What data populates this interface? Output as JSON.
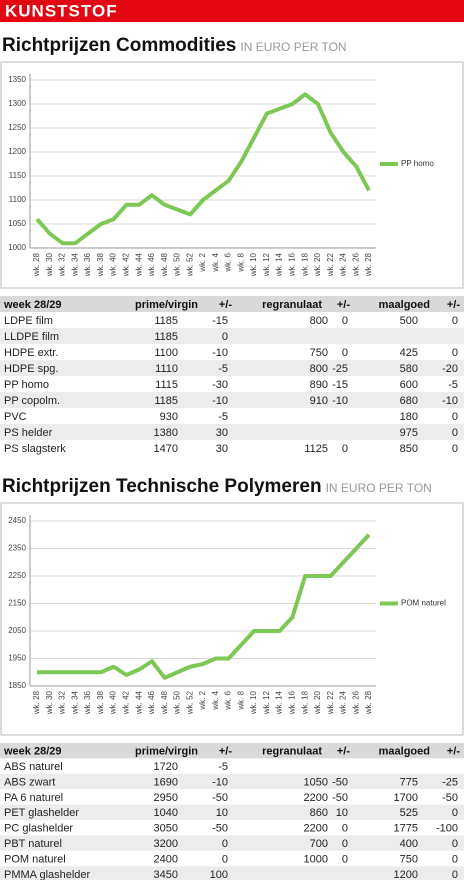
{
  "header": "KUNSTSTOF",
  "chart_data": [
    {
      "type": "line",
      "title": "Richtprijzen Commodities",
      "subtitle": "IN EURO PER TON",
      "categories": [
        "wk. 28",
        "wk. 30",
        "wk. 32",
        "wk. 34",
        "wk. 36",
        "wk. 38",
        "wk. 40",
        "wk. 42",
        "wk. 44",
        "wk. 46",
        "wk. 48",
        "wk. 50",
        "wk. 52",
        "wk. 2",
        "wk. 4",
        "wk. 6",
        "wk. 8",
        "wk. 10",
        "wk. 12",
        "wk. 14",
        "wk. 16",
        "wk. 18",
        "wk. 20",
        "wk. 22",
        "wk. 24",
        "wk. 26",
        "wk. 28"
      ],
      "series": [
        {
          "name": "PP homo",
          "color": "#7dc855",
          "values": [
            1060,
            1030,
            1010,
            1010,
            1030,
            1050,
            1060,
            1090,
            1090,
            1110,
            1090,
            1080,
            1070,
            1100,
            1120,
            1140,
            1180,
            1230,
            1280,
            1290,
            1300,
            1320,
            1300,
            1240,
            1200,
            1170,
            1120
          ]
        }
      ],
      "ylim": [
        1000,
        1350
      ],
      "yticks": [
        1000,
        1050,
        1100,
        1150,
        1200,
        1250,
        1300,
        1350
      ],
      "grid": true,
      "legend": "right"
    },
    {
      "type": "line",
      "title": "Richtprijzen Technische Polymeren",
      "subtitle": "IN EURO PER TON",
      "categories": [
        "wk. 28",
        "wk. 30",
        "wk. 32",
        "wk. 34",
        "wk. 36",
        "wk. 38",
        "wk. 40",
        "wk. 42",
        "wk. 44",
        "wk. 46",
        "wk. 48",
        "wk. 50",
        "wk. 52",
        "wk. 2",
        "wk. 4",
        "wk. 6",
        "wk. 8",
        "wk. 10",
        "wk. 12",
        "wk. 14",
        "wk. 16",
        "wk. 18",
        "wk. 20",
        "wk. 22",
        "wk. 24",
        "wk. 26",
        "wk. 28"
      ],
      "series": [
        {
          "name": "POM naturel",
          "color": "#7dc855",
          "values": [
            1900,
            1900,
            1900,
            1900,
            1900,
            1900,
            1920,
            1890,
            1910,
            1940,
            1880,
            1900,
            1920,
            1930,
            1950,
            1950,
            2000,
            2050,
            2050,
            2050,
            2100,
            2250,
            2250,
            2250,
            2300,
            2350,
            2400
          ]
        }
      ],
      "ylim": [
        1850,
        2450
      ],
      "yticks": [
        1850,
        1950,
        2050,
        2150,
        2250,
        2350,
        2450
      ],
      "grid": true,
      "legend": "right"
    }
  ],
  "tables": [
    {
      "columns": [
        "week 28/29",
        "prime/virgin",
        "+/-",
        "regranulaat",
        "+/-",
        "maalgoed",
        "+/-"
      ],
      "rows": [
        [
          "LDPE film",
          1185,
          -15,
          800,
          0,
          500,
          0
        ],
        [
          "LLDPE film",
          1185,
          0,
          null,
          null,
          null,
          null
        ],
        [
          "HDPE extr.",
          1100,
          -10,
          750,
          0,
          425,
          0
        ],
        [
          "HDPE spg.",
          1110,
          -5,
          800,
          -25,
          580,
          -20
        ],
        [
          "PP homo",
          1115,
          -30,
          890,
          -15,
          600,
          -5
        ],
        [
          "PP copolm.",
          1185,
          -10,
          910,
          -10,
          680,
          -10
        ],
        [
          "PVC",
          930,
          -5,
          null,
          null,
          180,
          0
        ],
        [
          "PS helder",
          1380,
          30,
          null,
          null,
          975,
          0
        ],
        [
          "PS slagsterk",
          1470,
          30,
          1125,
          0,
          850,
          0
        ]
      ]
    },
    {
      "columns": [
        "week 28/29",
        "prime/virgin",
        "+/-",
        "regranulaat",
        "+/-",
        "maalgoed",
        "+/-"
      ],
      "rows": [
        [
          "ABS naturel",
          1720,
          -5,
          null,
          null,
          null,
          null
        ],
        [
          "ABS zwart",
          1690,
          -10,
          1050,
          -50,
          775,
          -25
        ],
        [
          "PA 6 naturel",
          2950,
          -50,
          2200,
          -50,
          1700,
          -50
        ],
        [
          "PET glashelder",
          1040,
          10,
          860,
          10,
          525,
          0
        ],
        [
          "PC glashelder",
          3050,
          -50,
          2200,
          0,
          1775,
          -100
        ],
        [
          "PBT naturel",
          3200,
          0,
          700,
          0,
          400,
          0
        ],
        [
          "POM naturel",
          2400,
          0,
          1000,
          0,
          750,
          0
        ],
        [
          "PMMA glashelder",
          3450,
          100,
          null,
          null,
          1200,
          0
        ]
      ]
    }
  ]
}
